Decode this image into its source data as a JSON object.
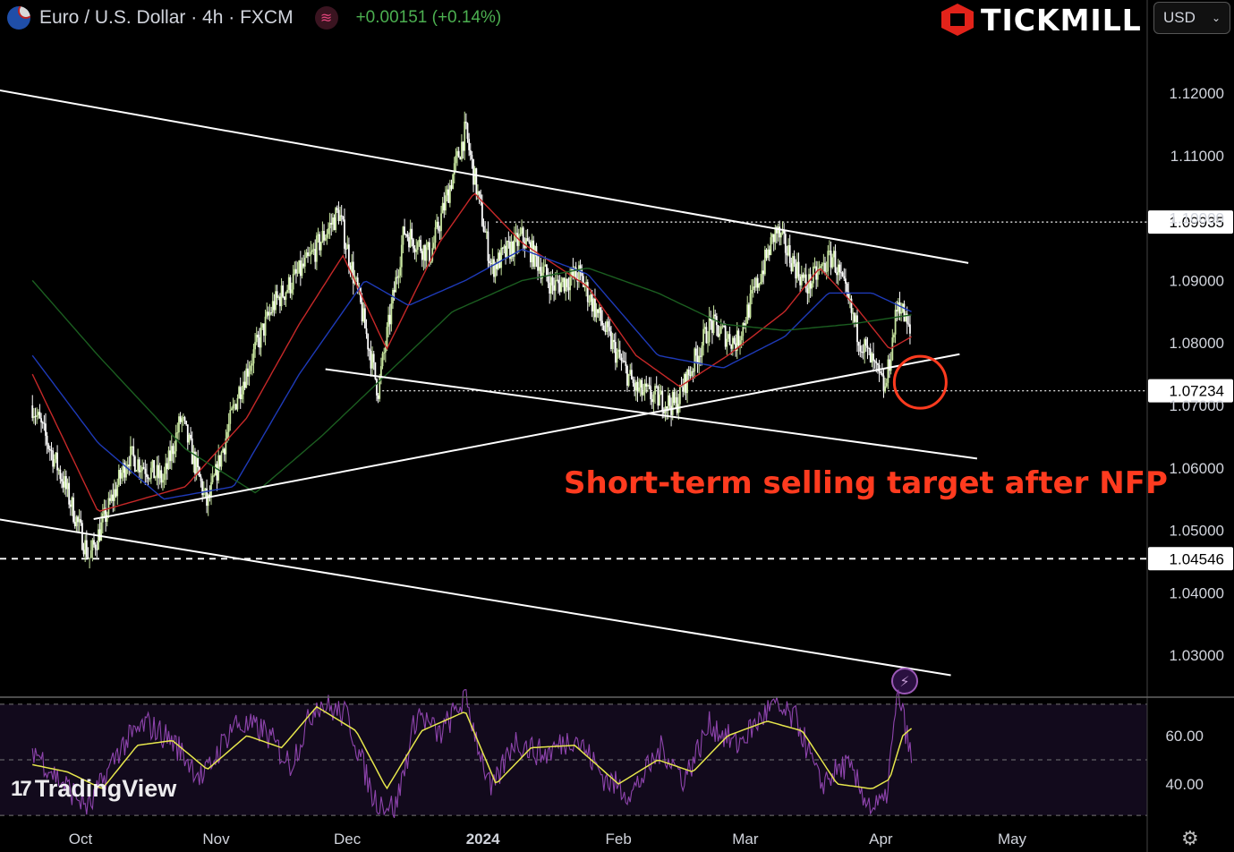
{
  "header": {
    "symbol": "Euro / U.S. Dollar · 4h · FXCM",
    "change": "+0.00151 (+0.14%)"
  },
  "brand": {
    "name": "TICKMILL"
  },
  "currency_select": {
    "value": "USD"
  },
  "watermark": "TradingView",
  "annotation": "Short-term selling target after NFP",
  "colors": {
    "background": "#000000",
    "up_candle": "#c8e6a0",
    "down_candle": "#ffffff",
    "ma_fast": "#c62828",
    "ma_mid": "#1e3ab8",
    "ma_slow": "#1b5e20",
    "rsi": "#8e44ad",
    "rsi_signal": "#e6e64c",
    "annotation": "#ff3b1f"
  },
  "chart_data": [
    {
      "type": "candlestick",
      "title": "Euro / U.S. Dollar · 4h · FXCM",
      "x_ticks": [
        "Oct",
        "Nov",
        "Dec",
        "2024",
        "Feb",
        "Mar",
        "Apr",
        "May"
      ],
      "y_ticks": [
        "1.12000",
        "1.11000",
        "1.10000",
        "1.09000",
        "1.08000",
        "1.07000",
        "1.06000",
        "1.05000",
        "1.04000",
        "1.03000"
      ],
      "ylim": [
        1.0235,
        1.1305
      ],
      "price_marks": [
        {
          "label": "1.09935",
          "value": 1.09935,
          "style": "dotted"
        },
        {
          "label": "1.07234",
          "value": 1.07234,
          "style": "dotted"
        },
        {
          "label": "1.04546",
          "value": 1.04546,
          "style": "dashed"
        }
      ],
      "path_anchors": [
        [
          "2023-09-20",
          1.07
        ],
        [
          "2023-09-27",
          1.058
        ],
        [
          "2023-10-03",
          1.0455
        ],
        [
          "2023-10-12",
          1.062
        ],
        [
          "2023-10-20",
          1.058
        ],
        [
          "2023-10-24",
          1.068
        ],
        [
          "2023-10-30",
          1.054
        ],
        [
          "2023-11-06",
          1.072
        ],
        [
          "2023-11-14",
          1.086
        ],
        [
          "2023-11-22",
          1.093
        ],
        [
          "2023-11-29",
          1.101
        ],
        [
          "2023-12-04",
          1.086
        ],
        [
          "2023-12-08",
          1.0723
        ],
        [
          "2023-12-14",
          1.098
        ],
        [
          "2023-12-20",
          1.094
        ],
        [
          "2023-12-28",
          1.114
        ],
        [
          "2024-01-03",
          1.092
        ],
        [
          "2024-01-10",
          1.097
        ],
        [
          "2024-01-17",
          1.089
        ],
        [
          "2024-01-23",
          1.091
        ],
        [
          "2024-01-31",
          1.079
        ],
        [
          "2024-02-05",
          1.0725
        ],
        [
          "2024-02-14",
          1.07
        ],
        [
          "2024-02-22",
          1.083
        ],
        [
          "2024-02-28",
          1.08
        ],
        [
          "2024-03-08",
          1.098
        ],
        [
          "2024-03-15",
          1.089
        ],
        [
          "2024-03-21",
          1.094
        ],
        [
          "2024-03-27",
          1.081
        ],
        [
          "2024-04-02",
          1.0724
        ],
        [
          "2024-04-05",
          1.087
        ],
        [
          "2024-04-08",
          1.0805
        ]
      ],
      "moving_averages": [
        {
          "color": "#c62828",
          "anchors": [
            [
              "2023-09-20",
              1.075
            ],
            [
              "2023-10-05",
              1.053
            ],
            [
              "2023-10-25",
              1.057
            ],
            [
              "2023-11-08",
              1.068
            ],
            [
              "2023-11-20",
              1.083
            ],
            [
              "2023-11-30",
              1.094
            ],
            [
              "2023-12-10",
              1.079
            ],
            [
              "2023-12-22",
              1.096
            ],
            [
              "2023-12-30",
              1.104
            ],
            [
              "2024-01-10",
              1.096
            ],
            [
              "2024-01-25",
              1.089
            ],
            [
              "2024-02-05",
              1.078
            ],
            [
              "2024-02-15",
              1.073
            ],
            [
              "2024-02-26",
              1.078
            ],
            [
              "2024-03-10",
              1.085
            ],
            [
              "2024-03-18",
              1.092
            ],
            [
              "2024-03-26",
              1.086
            ],
            [
              "2024-04-03",
              1.079
            ],
            [
              "2024-04-08",
              1.081
            ]
          ]
        },
        {
          "color": "#1e3ab8",
          "anchors": [
            [
              "2023-09-20",
              1.078
            ],
            [
              "2023-10-05",
              1.064
            ],
            [
              "2023-10-20",
              1.055
            ],
            [
              "2023-11-05",
              1.057
            ],
            [
              "2023-11-20",
              1.075
            ],
            [
              "2023-12-05",
              1.09
            ],
            [
              "2023-12-15",
              1.086
            ],
            [
              "2023-12-28",
              1.09
            ],
            [
              "2024-01-10",
              1.095
            ],
            [
              "2024-01-25",
              1.091
            ],
            [
              "2024-02-10",
              1.078
            ],
            [
              "2024-02-25",
              1.076
            ],
            [
              "2024-03-10",
              1.081
            ],
            [
              "2024-03-20",
              1.088
            ],
            [
              "2024-03-30",
              1.088
            ],
            [
              "2024-04-08",
              1.085
            ]
          ]
        },
        {
          "color": "#1b5e20",
          "anchors": [
            [
              "2023-09-20",
              1.09
            ],
            [
              "2023-10-05",
              1.078
            ],
            [
              "2023-10-25",
              1.063
            ],
            [
              "2023-11-10",
              1.056
            ],
            [
              "2023-11-25",
              1.065
            ],
            [
              "2023-12-10",
              1.075
            ],
            [
              "2023-12-25",
              1.085
            ],
            [
              "2024-01-10",
              1.09
            ],
            [
              "2024-01-25",
              1.092
            ],
            [
              "2024-02-10",
              1.088
            ],
            [
              "2024-02-25",
              1.083
            ],
            [
              "2024-03-10",
              1.082
            ],
            [
              "2024-03-25",
              1.083
            ],
            [
              "2024-04-08",
              1.0845
            ]
          ]
        }
      ],
      "trend_lines": [
        {
          "from": [
            "2023-09-12",
            1.1205
          ],
          "to": [
            "2024-04-21",
            1.0928
          ],
          "color": "#ffffff"
        },
        {
          "from": [
            "2023-11-26",
            1.0758
          ],
          "to": [
            "2024-04-23",
            1.0615
          ],
          "color": "#ffffff"
        },
        {
          "from": [
            "2023-10-04",
            1.0518
          ],
          "to": [
            "2024-04-19",
            1.0782
          ],
          "color": "#ffffff"
        },
        {
          "from": [
            "2023-09-12",
            1.0518
          ],
          "to": [
            "2024-04-17",
            1.0268
          ],
          "color": "#ffffff"
        }
      ],
      "highlight_circle": {
        "center": [
          "2024-04-10",
          1.0737
        ]
      }
    },
    {
      "type": "line",
      "title": "",
      "y_ticks": [
        "60.00",
        "40.00"
      ],
      "ylim": [
        24,
        80
      ],
      "bands": [
        73,
        50,
        27
      ],
      "series": [
        {
          "color": "#8e44ad",
          "anchors": [
            [
              "2023-09-20",
              55
            ],
            [
              "2023-09-26",
              42
            ],
            [
              "2023-10-03",
              30
            ],
            [
              "2023-10-10",
              55
            ],
            [
              "2023-10-16",
              65
            ],
            [
              "2023-10-22",
              58
            ],
            [
              "2023-10-29",
              42
            ],
            [
              "2023-11-05",
              65
            ],
            [
              "2023-11-12",
              62
            ],
            [
              "2023-11-18",
              48
            ],
            [
              "2023-11-24",
              74
            ],
            [
              "2023-12-01",
              68
            ],
            [
              "2023-12-07",
              34
            ],
            [
              "2023-12-12",
              30
            ],
            [
              "2023-12-17",
              70
            ],
            [
              "2023-12-22",
              60
            ],
            [
              "2023-12-28",
              76
            ],
            [
              "2024-01-03",
              36
            ],
            [
              "2024-01-08",
              58
            ],
            [
              "2024-01-15",
              52
            ],
            [
              "2024-01-22",
              60
            ],
            [
              "2024-01-29",
              42
            ],
            [
              "2024-02-04",
              36
            ],
            [
              "2024-02-11",
              55
            ],
            [
              "2024-02-16",
              42
            ],
            [
              "2024-02-22",
              65
            ],
            [
              "2024-02-28",
              56
            ],
            [
              "2024-03-07",
              72
            ],
            [
              "2024-03-13",
              66
            ],
            [
              "2024-03-18",
              40
            ],
            [
              "2024-03-24",
              48
            ],
            [
              "2024-03-30",
              30
            ],
            [
              "2024-04-02",
              32
            ],
            [
              "2024-04-05",
              78
            ],
            [
              "2024-04-08",
              50
            ]
          ]
        },
        {
          "color": "#e6e64c",
          "anchors": [
            [
              "2023-09-20",
              48
            ],
            [
              "2023-09-28",
              45
            ],
            [
              "2023-10-06",
              38
            ],
            [
              "2023-10-14",
              56
            ],
            [
              "2023-10-22",
              58
            ],
            [
              "2023-10-30",
              46
            ],
            [
              "2023-11-08",
              60
            ],
            [
              "2023-11-16",
              55
            ],
            [
              "2023-11-24",
              72
            ],
            [
              "2023-12-03",
              62
            ],
            [
              "2023-12-10",
              38
            ],
            [
              "2023-12-18",
              62
            ],
            [
              "2023-12-28",
              70
            ],
            [
              "2024-01-04",
              40
            ],
            [
              "2024-01-12",
              55
            ],
            [
              "2024-01-22",
              56
            ],
            [
              "2024-02-01",
              40
            ],
            [
              "2024-02-10",
              50
            ],
            [
              "2024-02-18",
              45
            ],
            [
              "2024-02-26",
              60
            ],
            [
              "2024-03-06",
              66
            ],
            [
              "2024-03-14",
              62
            ],
            [
              "2024-03-22",
              40
            ],
            [
              "2024-03-30",
              38
            ],
            [
              "2024-04-03",
              42
            ],
            [
              "2024-04-06",
              60
            ],
            [
              "2024-04-08",
              63
            ]
          ]
        }
      ]
    }
  ]
}
